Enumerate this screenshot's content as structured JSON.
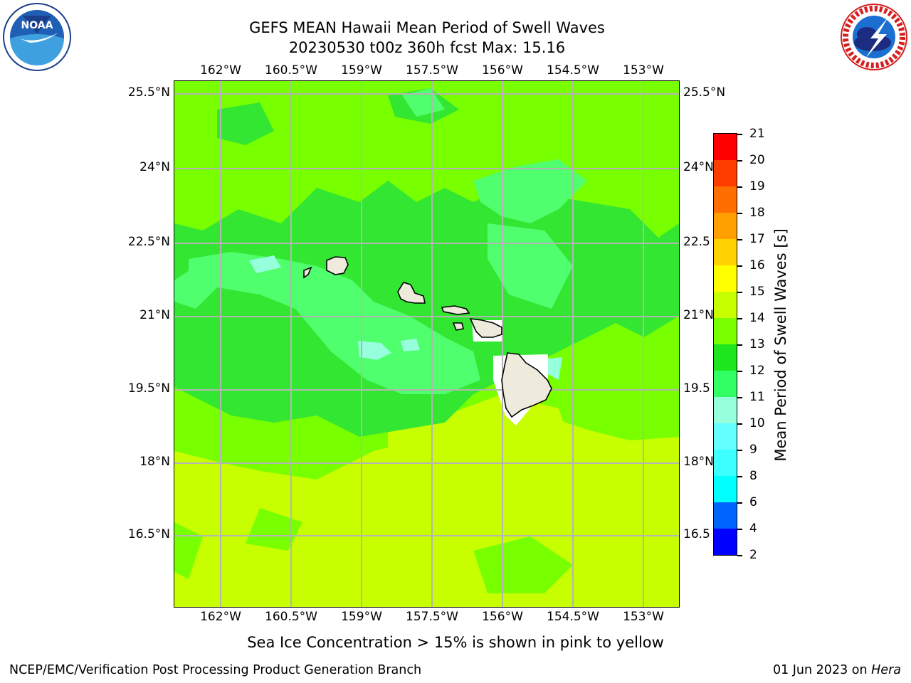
{
  "title": {
    "line1": "GEFS MEAN Hawaii Mean Period of Swell Waves",
    "line2": "20230530 t00z 360h fcst   Max: 15.16"
  },
  "map": {
    "lon_labels": [
      "162°W",
      "160.5°W",
      "159°W",
      "157.5°W",
      "156°W",
      "154.5°W",
      "153°W"
    ],
    "lat_labels": [
      "25.5°N",
      "24°N",
      "22.5°N",
      "21°N",
      "19.5°N",
      "18°N",
      "16.5°N"
    ],
    "right_lat_labels": [
      "25.5°N",
      "24°N",
      "22.5",
      "21°N",
      "19.5",
      "18°N",
      "16.5"
    ]
  },
  "colorbar": {
    "label": "Mean Period of Swell Waves [s]",
    "levels": [
      "2",
      "4",
      "6",
      "8",
      "9",
      "10",
      "11",
      "12",
      "13",
      "14",
      "15",
      "16",
      "17",
      "18",
      "19",
      "20",
      "21"
    ],
    "colors": [
      "#0000ff",
      "#0064ff",
      "#00ffff",
      "#3cffff",
      "#64ffff",
      "#96ffdc",
      "#32ff64",
      "#1ee61e",
      "#78ff00",
      "#c8ff00",
      "#ffff00",
      "#ffd200",
      "#ffa000",
      "#ff6e00",
      "#ff3c00",
      "#ff0000"
    ]
  },
  "footer": {
    "note": "Sea Ice Concentration > 15% is shown in pink to yellow",
    "credit": "NCEP/EMC/Verification Post Processing Product Generation Branch",
    "date": "01 Jun 2023 on ",
    "host": "Hera"
  },
  "logos": {
    "noaa_text": "NOAA",
    "nws_text": "NATIONAL WEATHER SERVICE"
  }
}
